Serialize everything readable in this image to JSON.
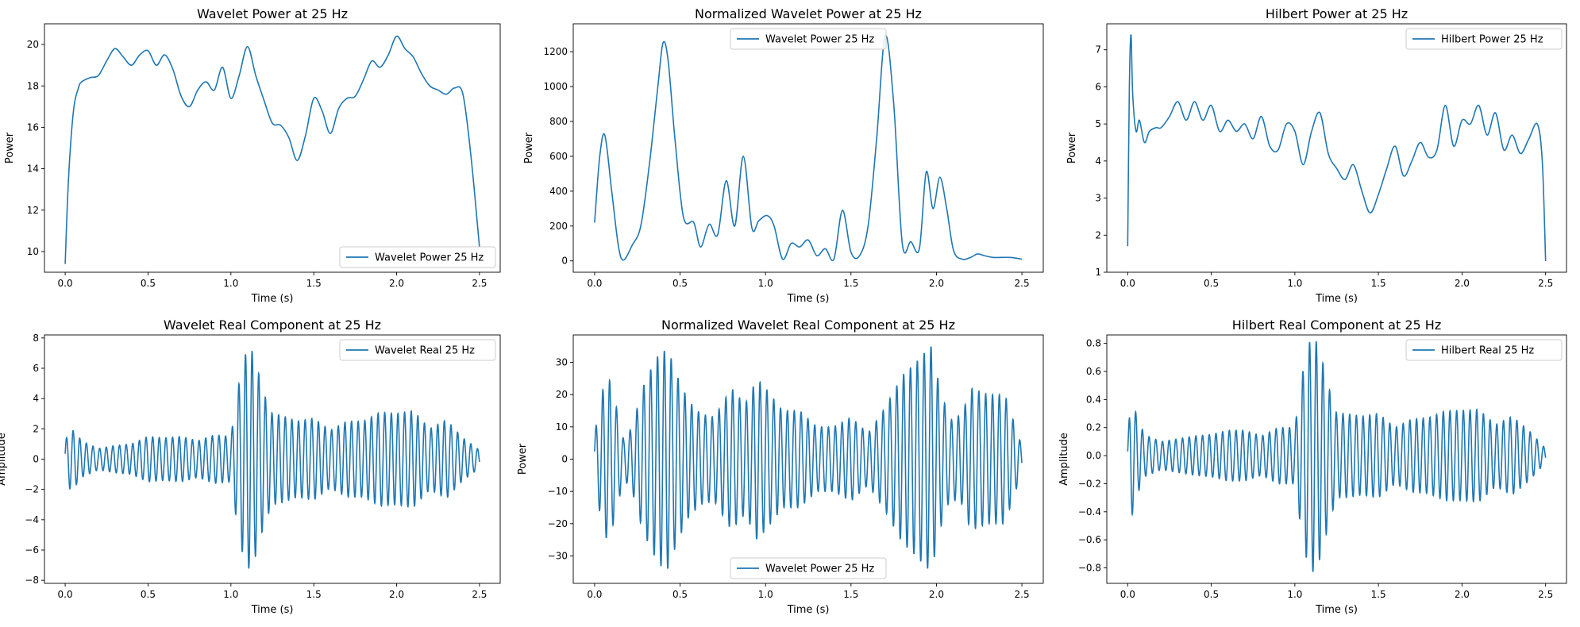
{
  "chart_data": [
    {
      "type": "line",
      "title": "Wavelet Power at 25 Hz",
      "xlabel": "Time (s)",
      "ylabel": "Power",
      "xlim": [
        -0.125,
        2.625
      ],
      "ylim": [
        9.0,
        21.0
      ],
      "xticks": [
        0.0,
        0.5,
        1.0,
        1.5,
        2.0,
        2.5
      ],
      "xtick_labels": [
        "0.0",
        "0.5",
        "1.0",
        "1.5",
        "2.0",
        "2.5"
      ],
      "yticks": [
        10,
        12,
        14,
        16,
        18,
        20
      ],
      "ytick_labels": [
        "10",
        "12",
        "14",
        "16",
        "18",
        "20"
      ],
      "grid": false,
      "legend": "lower-right",
      "series": [
        {
          "name": "Wavelet Power 25 Hz",
          "color": "#1f77b4",
          "x": [
            0.0,
            0.02,
            0.05,
            0.08,
            0.1,
            0.15,
            0.2,
            0.25,
            0.3,
            0.35,
            0.4,
            0.45,
            0.5,
            0.55,
            0.6,
            0.65,
            0.7,
            0.75,
            0.8,
            0.85,
            0.9,
            0.95,
            1.0,
            1.05,
            1.1,
            1.15,
            1.2,
            1.25,
            1.3,
            1.35,
            1.4,
            1.45,
            1.5,
            1.55,
            1.6,
            1.65,
            1.7,
            1.75,
            1.8,
            1.85,
            1.9,
            1.95,
            2.0,
            2.05,
            2.1,
            2.15,
            2.2,
            2.25,
            2.3,
            2.35,
            2.4,
            2.45,
            2.5
          ],
          "y": [
            9.4,
            13.5,
            16.8,
            17.9,
            18.2,
            18.4,
            18.5,
            19.2,
            19.8,
            19.4,
            19.0,
            19.5,
            19.7,
            19.0,
            19.5,
            18.8,
            17.5,
            17.0,
            17.8,
            18.2,
            17.8,
            18.9,
            17.4,
            18.5,
            19.9,
            18.5,
            17.3,
            16.2,
            16.1,
            15.5,
            14.4,
            15.6,
            17.4,
            16.8,
            15.7,
            16.9,
            17.4,
            17.5,
            18.3,
            19.2,
            18.9,
            19.5,
            20.4,
            19.8,
            19.4,
            18.6,
            18.0,
            17.8,
            17.6,
            17.9,
            17.6,
            14.5,
            10.2
          ]
        }
      ]
    },
    {
      "type": "line",
      "title": "Normalized Wavelet Power at 25 Hz",
      "xlabel": "Time (s)",
      "ylabel": "Power",
      "xlim": [
        -0.125,
        2.625
      ],
      "ylim": [
        -65,
        1360
      ],
      "xticks": [
        0.0,
        0.5,
        1.0,
        1.5,
        2.0,
        2.5
      ],
      "xtick_labels": [
        "0.0",
        "0.5",
        "1.0",
        "1.5",
        "2.0",
        "2.5"
      ],
      "yticks": [
        0,
        200,
        400,
        600,
        800,
        1000,
        1200
      ],
      "ytick_labels": [
        "0",
        "200",
        "400",
        "600",
        "800",
        "1000",
        "1200"
      ],
      "grid": false,
      "legend": "upper-center",
      "series": [
        {
          "name": "Wavelet Power 25 Hz",
          "color": "#1f77b4",
          "x": [
            0.0,
            0.03,
            0.06,
            0.1,
            0.14,
            0.17,
            0.22,
            0.27,
            0.32,
            0.37,
            0.4,
            0.43,
            0.47,
            0.52,
            0.58,
            0.62,
            0.67,
            0.72,
            0.77,
            0.82,
            0.87,
            0.92,
            0.96,
            1.01,
            1.05,
            1.1,
            1.15,
            1.2,
            1.25,
            1.3,
            1.35,
            1.4,
            1.45,
            1.5,
            1.55,
            1.6,
            1.65,
            1.7,
            1.75,
            1.8,
            1.85,
            1.9,
            1.94,
            1.98,
            2.02,
            2.06,
            2.1,
            2.15,
            2.2,
            2.24,
            2.28,
            2.33,
            2.38,
            2.43,
            2.47,
            2.5
          ],
          "y": [
            220,
            600,
            720,
            400,
            80,
            5,
            90,
            200,
            550,
            1000,
            1250,
            1150,
            700,
            250,
            220,
            80,
            210,
            150,
            460,
            200,
            600,
            190,
            230,
            260,
            200,
            10,
            100,
            80,
            120,
            30,
            70,
            10,
            290,
            50,
            30,
            200,
            700,
            1290,
            900,
            100,
            110,
            70,
            510,
            300,
            480,
            300,
            60,
            10,
            20,
            40,
            30,
            20,
            20,
            20,
            15,
            10
          ]
        }
      ]
    },
    {
      "type": "line",
      "title": "Hilbert Power at 25 Hz",
      "xlabel": "Time (s)",
      "ylabel": "Power",
      "xlim": [
        -0.125,
        2.625
      ],
      "ylim": [
        1.0,
        7.7
      ],
      "xticks": [
        0.0,
        0.5,
        1.0,
        1.5,
        2.0,
        2.5
      ],
      "xtick_labels": [
        "0.0",
        "0.5",
        "1.0",
        "1.5",
        "2.0",
        "2.5"
      ],
      "yticks": [
        1,
        2,
        3,
        4,
        5,
        6,
        7
      ],
      "ytick_labels": [
        "1",
        "2",
        "3",
        "4",
        "5",
        "6",
        "7"
      ],
      "grid": false,
      "legend": "upper-right",
      "series": [
        {
          "name": "Hilbert Power 25 Hz",
          "color": "#1f77b4",
          "x": [
            0.0,
            0.01,
            0.02,
            0.03,
            0.05,
            0.07,
            0.1,
            0.13,
            0.17,
            0.2,
            0.25,
            0.3,
            0.35,
            0.4,
            0.45,
            0.5,
            0.55,
            0.6,
            0.65,
            0.7,
            0.75,
            0.8,
            0.85,
            0.9,
            0.95,
            1.0,
            1.05,
            1.1,
            1.15,
            1.2,
            1.25,
            1.3,
            1.35,
            1.4,
            1.45,
            1.5,
            1.55,
            1.6,
            1.65,
            1.7,
            1.75,
            1.8,
            1.85,
            1.9,
            1.95,
            2.0,
            2.05,
            2.1,
            2.15,
            2.2,
            2.25,
            2.3,
            2.35,
            2.4,
            2.45,
            2.48,
            2.5
          ],
          "y": [
            1.7,
            6.0,
            7.4,
            5.8,
            4.8,
            5.1,
            4.5,
            4.8,
            4.9,
            4.9,
            5.2,
            5.6,
            5.1,
            5.6,
            5.1,
            5.5,
            4.8,
            5.1,
            4.8,
            5.0,
            4.6,
            5.2,
            4.4,
            4.3,
            5.0,
            4.8,
            3.9,
            4.8,
            5.3,
            4.2,
            3.8,
            3.5,
            3.9,
            3.2,
            2.6,
            3.1,
            3.8,
            4.4,
            3.6,
            4.0,
            4.5,
            4.1,
            4.3,
            5.5,
            4.4,
            5.1,
            5.0,
            5.5,
            4.7,
            5.3,
            4.3,
            4.7,
            4.2,
            4.6,
            5.0,
            4.0,
            1.3
          ]
        }
      ]
    },
    {
      "type": "line",
      "title": "Wavelet Real Component at 25 Hz",
      "xlabel": "Time (s)",
      "ylabel": "Amplitude",
      "xlim": [
        -0.125,
        2.625
      ],
      "ylim": [
        -8.2,
        8.2
      ],
      "xticks": [
        0.0,
        0.5,
        1.0,
        1.5,
        2.0,
        2.5
      ],
      "xtick_labels": [
        "0.0",
        "0.5",
        "1.0",
        "1.5",
        "2.0",
        "2.5"
      ],
      "yticks": [
        -8,
        -6,
        -4,
        -2,
        0,
        2,
        4,
        6,
        8
      ],
      "ytick_labels": [
        "−8",
        "−6",
        "−4",
        "−2",
        "0",
        "2",
        "4",
        "6",
        "8"
      ],
      "grid": false,
      "legend": "upper-right",
      "oscillation_hz": 25,
      "series": [
        {
          "name": "Wavelet Real 25 Hz",
          "color": "#1f77b4",
          "envelope_x": [
            0.0,
            0.03,
            0.06,
            0.1,
            0.2,
            0.3,
            0.4,
            0.5,
            0.6,
            0.7,
            0.8,
            0.9,
            1.0,
            1.04,
            1.08,
            1.12,
            1.16,
            1.2,
            1.25,
            1.3,
            1.4,
            1.5,
            1.6,
            1.7,
            1.8,
            1.9,
            2.0,
            2.1,
            2.2,
            2.3,
            2.4,
            2.5
          ],
          "envelope_y": [
            1.2,
            2.0,
            1.8,
            1.2,
            0.7,
            0.9,
            1.0,
            1.5,
            1.4,
            1.5,
            1.2,
            1.6,
            1.5,
            4.5,
            6.8,
            7.4,
            6.0,
            4.3,
            3.0,
            2.9,
            2.5,
            2.7,
            1.9,
            2.5,
            2.5,
            3.1,
            3.0,
            3.2,
            2.0,
            2.6,
            1.4,
            0.6
          ]
        }
      ]
    },
    {
      "type": "line",
      "title": "Normalized Wavelet Real Component at 25 Hz",
      "xlabel": "Time (s)",
      "ylabel": "Power",
      "xlim": [
        -0.125,
        2.625
      ],
      "ylim": [
        -38.5,
        38.5
      ],
      "xticks": [
        0.0,
        0.5,
        1.0,
        1.5,
        2.0,
        2.5
      ],
      "xtick_labels": [
        "0.0",
        "0.5",
        "1.0",
        "1.5",
        "2.0",
        "2.5"
      ],
      "yticks": [
        -30,
        -20,
        -10,
        0,
        10,
        20,
        30
      ],
      "ytick_labels": [
        "−30",
        "−20",
        "−10",
        "0",
        "10",
        "20",
        "30"
      ],
      "grid": false,
      "legend": "lower-center",
      "oscillation_hz": 25,
      "series": [
        {
          "name": "Wavelet Power 25 Hz",
          "color": "#1f77b4",
          "envelope_x": [
            0.0,
            0.05,
            0.08,
            0.12,
            0.17,
            0.22,
            0.28,
            0.33,
            0.38,
            0.43,
            0.48,
            0.55,
            0.62,
            0.7,
            0.8,
            0.88,
            0.95,
            1.0,
            1.1,
            1.2,
            1.3,
            1.4,
            1.5,
            1.6,
            1.7,
            1.8,
            1.88,
            1.93,
            1.97,
            2.02,
            2.08,
            2.15,
            2.2,
            2.3,
            2.4,
            2.5
          ],
          "envelope_y": [
            8,
            22,
            26,
            18,
            6,
            10,
            22,
            28,
            33,
            34,
            26,
            18,
            14,
            13,
            22,
            17,
            25,
            22,
            15,
            15,
            10,
            10,
            13,
            8,
            16,
            26,
            30,
            33,
            35,
            22,
            12,
            14,
            22,
            20,
            20,
            4
          ]
        }
      ]
    },
    {
      "type": "line",
      "title": "Hilbert Real Component at 25 Hz",
      "xlabel": "Time (s)",
      "ylabel": "Amplitude",
      "xlim": [
        -0.125,
        2.625
      ],
      "ylim": [
        -0.91,
        0.86
      ],
      "xticks": [
        0.0,
        0.5,
        1.0,
        1.5,
        2.0,
        2.5
      ],
      "xtick_labels": [
        "0.0",
        "0.5",
        "1.0",
        "1.5",
        "2.0",
        "2.5"
      ],
      "yticks": [
        -0.8,
        -0.6,
        -0.4,
        -0.2,
        0.0,
        0.2,
        0.4,
        0.6,
        0.8
      ],
      "ytick_labels": [
        "−0.8",
        "−0.6",
        "−0.4",
        "−0.2",
        "0.0",
        "0.2",
        "0.4",
        "0.6",
        "0.8"
      ],
      "grid": false,
      "legend": "upper-right",
      "oscillation_hz": 25,
      "series": [
        {
          "name": "Hilbert Real 25 Hz",
          "color": "#1f77b4",
          "envelope_x": [
            0.0,
            0.02,
            0.05,
            0.1,
            0.2,
            0.3,
            0.4,
            0.5,
            0.6,
            0.7,
            0.8,
            0.9,
            1.0,
            1.04,
            1.08,
            1.12,
            1.16,
            1.2,
            1.25,
            1.3,
            1.4,
            1.5,
            1.6,
            1.7,
            1.8,
            1.9,
            2.0,
            2.1,
            2.2,
            2.3,
            2.4,
            2.5
          ],
          "envelope_y": [
            0.1,
            0.46,
            0.3,
            0.15,
            0.1,
            0.12,
            0.14,
            0.15,
            0.18,
            0.18,
            0.14,
            0.2,
            0.2,
            0.55,
            0.8,
            0.84,
            0.7,
            0.5,
            0.3,
            0.3,
            0.28,
            0.3,
            0.2,
            0.26,
            0.27,
            0.32,
            0.32,
            0.33,
            0.22,
            0.28,
            0.18,
            0.05
          ]
        }
      ]
    }
  ]
}
